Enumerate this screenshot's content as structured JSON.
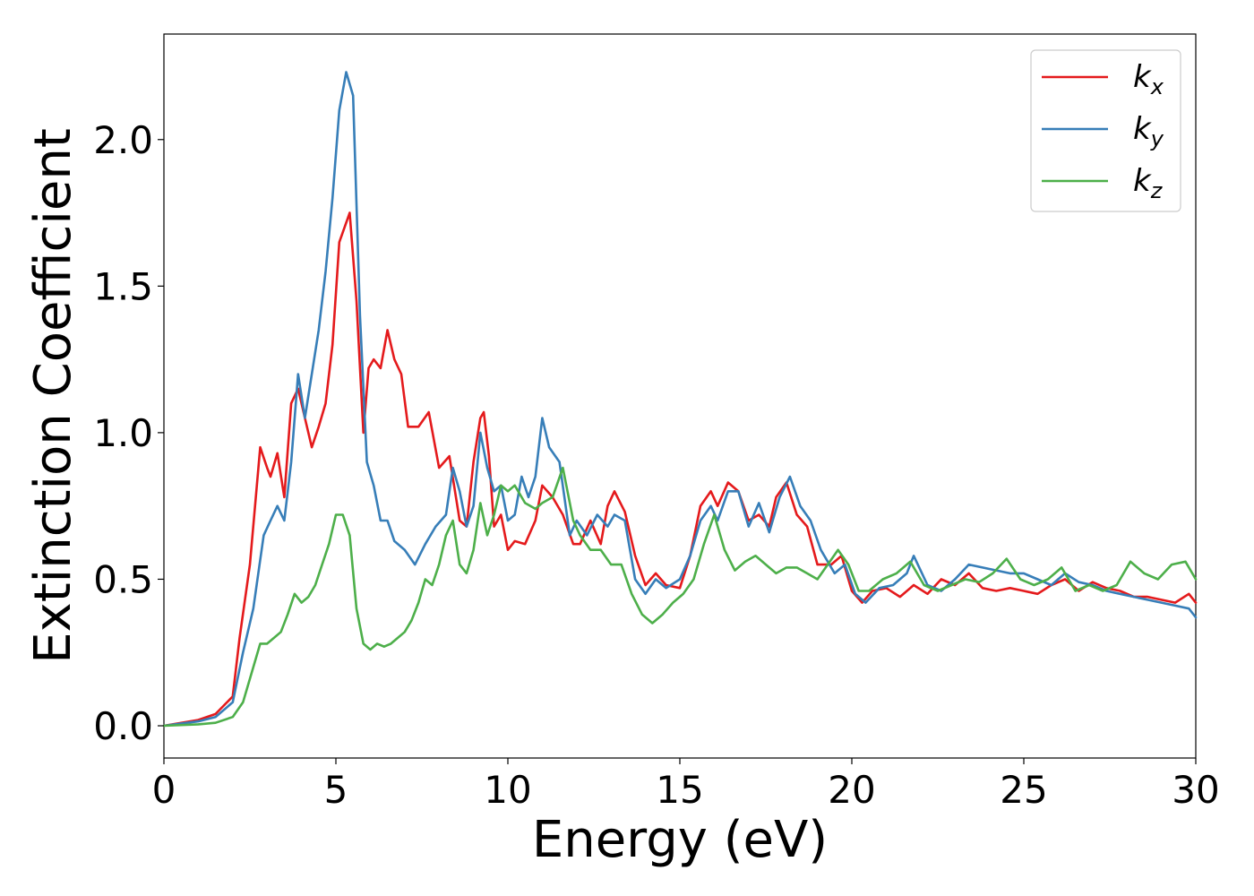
{
  "chart_data": {
    "type": "line",
    "title": "",
    "xlabel": "Energy (eV)",
    "ylabel": "Extinction Coefficient",
    "xlim": [
      0,
      30
    ],
    "ylim": [
      -0.11,
      2.36
    ],
    "xticks": [
      0,
      5,
      10,
      15,
      20,
      25,
      30
    ],
    "yticks": [
      0.0,
      0.5,
      1.0,
      1.5,
      2.0
    ],
    "xtick_labels": [
      "0",
      "5",
      "10",
      "15",
      "20",
      "25",
      "30"
    ],
    "ytick_labels": [
      "0.0",
      "0.5",
      "1.0",
      "1.5",
      "2.0"
    ],
    "grid": false,
    "legend_position": "top-right",
    "series": [
      {
        "name": "k",
        "subscript": "x",
        "color": "#e41a1c",
        "x": [
          0,
          1,
          1.5,
          2,
          2.2,
          2.5,
          2.8,
          3.0,
          3.1,
          3.3,
          3.5,
          3.7,
          3.9,
          4.1,
          4.3,
          4.5,
          4.7,
          4.9,
          5.1,
          5.25,
          5.4,
          5.6,
          5.8,
          5.95,
          6.1,
          6.3,
          6.5,
          6.7,
          6.9,
          7.1,
          7.4,
          7.7,
          8.0,
          8.3,
          8.6,
          8.8,
          9.0,
          9.2,
          9.3,
          9.45,
          9.6,
          9.8,
          10.0,
          10.2,
          10.5,
          10.8,
          11.0,
          11.3,
          11.6,
          11.9,
          12.1,
          12.4,
          12.7,
          12.9,
          13.1,
          13.4,
          13.7,
          14.0,
          14.3,
          14.6,
          15.0,
          15.3,
          15.6,
          15.9,
          16.1,
          16.4,
          16.7,
          17.0,
          17.3,
          17.6,
          17.8,
          18.1,
          18.4,
          18.7,
          19.0,
          19.4,
          19.7,
          20.0,
          20.3,
          20.6,
          21.0,
          21.4,
          21.8,
          22.2,
          22.6,
          23.0,
          23.4,
          23.8,
          24.2,
          24.6,
          25.0,
          25.4,
          25.8,
          26.2,
          26.6,
          27.0,
          27.4,
          27.8,
          28.2,
          28.6,
          29.0,
          29.4,
          29.8,
          30.0
        ],
        "y": [
          0,
          0.02,
          0.04,
          0.1,
          0.3,
          0.55,
          0.95,
          0.88,
          0.85,
          0.93,
          0.78,
          1.1,
          1.15,
          1.05,
          0.95,
          1.02,
          1.1,
          1.3,
          1.65,
          1.7,
          1.75,
          1.45,
          1.0,
          1.22,
          1.25,
          1.22,
          1.35,
          1.25,
          1.2,
          1.02,
          1.02,
          1.07,
          0.88,
          0.92,
          0.7,
          0.68,
          0.9,
          1.05,
          1.07,
          0.92,
          0.68,
          0.72,
          0.6,
          0.63,
          0.62,
          0.7,
          0.82,
          0.78,
          0.72,
          0.62,
          0.62,
          0.7,
          0.62,
          0.75,
          0.8,
          0.73,
          0.58,
          0.48,
          0.52,
          0.48,
          0.47,
          0.58,
          0.75,
          0.8,
          0.75,
          0.83,
          0.8,
          0.7,
          0.72,
          0.68,
          0.78,
          0.83,
          0.72,
          0.68,
          0.55,
          0.55,
          0.58,
          0.46,
          0.42,
          0.46,
          0.47,
          0.44,
          0.48,
          0.45,
          0.5,
          0.48,
          0.52,
          0.47,
          0.46,
          0.47,
          0.46,
          0.45,
          0.48,
          0.5,
          0.46,
          0.49,
          0.47,
          0.46,
          0.44,
          0.44,
          0.43,
          0.42,
          0.45,
          0.42
        ]
      },
      {
        "name": "k",
        "subscript": "y",
        "color": "#377eb8",
        "x": [
          0,
          1,
          1.5,
          2,
          2.3,
          2.6,
          2.9,
          3.1,
          3.3,
          3.5,
          3.7,
          3.9,
          4.1,
          4.3,
          4.5,
          4.7,
          4.9,
          5.1,
          5.3,
          5.5,
          5.7,
          5.9,
          6.1,
          6.3,
          6.5,
          6.7,
          7.0,
          7.3,
          7.6,
          7.9,
          8.2,
          8.4,
          8.6,
          8.8,
          9.0,
          9.2,
          9.4,
          9.6,
          9.8,
          10.0,
          10.2,
          10.4,
          10.6,
          10.8,
          11.0,
          11.2,
          11.5,
          11.8,
          12.0,
          12.3,
          12.6,
          12.9,
          13.1,
          13.4,
          13.7,
          14.0,
          14.3,
          14.6,
          15.0,
          15.3,
          15.6,
          15.9,
          16.1,
          16.4,
          16.7,
          17.0,
          17.3,
          17.6,
          17.9,
          18.2,
          18.5,
          18.8,
          19.1,
          19.5,
          19.8,
          20.1,
          20.4,
          20.8,
          21.2,
          21.6,
          21.8,
          22.2,
          22.6,
          23.0,
          23.4,
          23.8,
          24.2,
          24.6,
          25.0,
          25.4,
          25.8,
          26.2,
          26.6,
          27.0,
          27.4,
          27.8,
          28.2,
          28.6,
          29.0,
          29.4,
          29.8,
          30.0
        ],
        "y": [
          0,
          0.015,
          0.03,
          0.08,
          0.25,
          0.4,
          0.65,
          0.7,
          0.75,
          0.7,
          0.9,
          1.2,
          1.05,
          1.2,
          1.35,
          1.55,
          1.8,
          2.1,
          2.23,
          2.15,
          1.4,
          0.9,
          0.82,
          0.7,
          0.7,
          0.63,
          0.6,
          0.55,
          0.62,
          0.68,
          0.72,
          0.88,
          0.8,
          0.68,
          0.75,
          1.0,
          0.88,
          0.8,
          0.82,
          0.7,
          0.72,
          0.85,
          0.78,
          0.85,
          1.05,
          0.95,
          0.9,
          0.65,
          0.7,
          0.65,
          0.72,
          0.68,
          0.72,
          0.7,
          0.5,
          0.45,
          0.5,
          0.47,
          0.5,
          0.58,
          0.7,
          0.75,
          0.7,
          0.8,
          0.8,
          0.68,
          0.76,
          0.66,
          0.78,
          0.85,
          0.75,
          0.7,
          0.6,
          0.52,
          0.55,
          0.45,
          0.42,
          0.47,
          0.48,
          0.52,
          0.58,
          0.48,
          0.46,
          0.5,
          0.55,
          0.54,
          0.53,
          0.52,
          0.52,
          0.5,
          0.48,
          0.52,
          0.49,
          0.48,
          0.46,
          0.45,
          0.44,
          0.43,
          0.42,
          0.41,
          0.4,
          0.37
        ]
      },
      {
        "name": "k",
        "subscript": "z",
        "color": "#4daf4a",
        "x": [
          0,
          1,
          1.5,
          2,
          2.3,
          2.6,
          2.8,
          3.0,
          3.2,
          3.4,
          3.6,
          3.8,
          4.0,
          4.2,
          4.4,
          4.6,
          4.8,
          5.0,
          5.2,
          5.4,
          5.6,
          5.8,
          6.0,
          6.2,
          6.4,
          6.6,
          6.8,
          7.0,
          7.2,
          7.4,
          7.6,
          7.8,
          8.0,
          8.2,
          8.4,
          8.6,
          8.8,
          9.0,
          9.2,
          9.4,
          9.6,
          9.8,
          10.0,
          10.2,
          10.5,
          10.8,
          11.0,
          11.3,
          11.6,
          11.9,
          12.1,
          12.4,
          12.7,
          13.0,
          13.3,
          13.6,
          13.9,
          14.2,
          14.5,
          14.8,
          15.1,
          15.4,
          15.7,
          16.0,
          16.3,
          16.6,
          16.9,
          17.2,
          17.5,
          17.8,
          18.1,
          18.4,
          18.7,
          19.0,
          19.3,
          19.6,
          19.9,
          20.2,
          20.5,
          20.9,
          21.3,
          21.7,
          22.1,
          22.5,
          22.9,
          23.3,
          23.7,
          24.1,
          24.5,
          24.9,
          25.3,
          25.7,
          26.1,
          26.5,
          26.9,
          27.3,
          27.7,
          28.1,
          28.5,
          28.9,
          29.3,
          29.7,
          30.0
        ],
        "y": [
          0,
          0.005,
          0.01,
          0.03,
          0.08,
          0.2,
          0.28,
          0.28,
          0.3,
          0.32,
          0.38,
          0.45,
          0.42,
          0.44,
          0.48,
          0.55,
          0.62,
          0.72,
          0.72,
          0.65,
          0.4,
          0.28,
          0.26,
          0.28,
          0.27,
          0.28,
          0.3,
          0.32,
          0.36,
          0.42,
          0.5,
          0.48,
          0.55,
          0.65,
          0.7,
          0.55,
          0.52,
          0.6,
          0.76,
          0.65,
          0.72,
          0.82,
          0.8,
          0.82,
          0.76,
          0.74,
          0.76,
          0.78,
          0.88,
          0.7,
          0.65,
          0.6,
          0.6,
          0.55,
          0.55,
          0.45,
          0.38,
          0.35,
          0.38,
          0.42,
          0.45,
          0.5,
          0.62,
          0.72,
          0.6,
          0.53,
          0.56,
          0.58,
          0.55,
          0.52,
          0.54,
          0.54,
          0.52,
          0.5,
          0.55,
          0.6,
          0.55,
          0.46,
          0.46,
          0.5,
          0.52,
          0.56,
          0.48,
          0.46,
          0.48,
          0.5,
          0.49,
          0.52,
          0.57,
          0.5,
          0.48,
          0.5,
          0.54,
          0.46,
          0.48,
          0.46,
          0.48,
          0.56,
          0.52,
          0.5,
          0.55,
          0.56,
          0.5
        ]
      }
    ]
  }
}
